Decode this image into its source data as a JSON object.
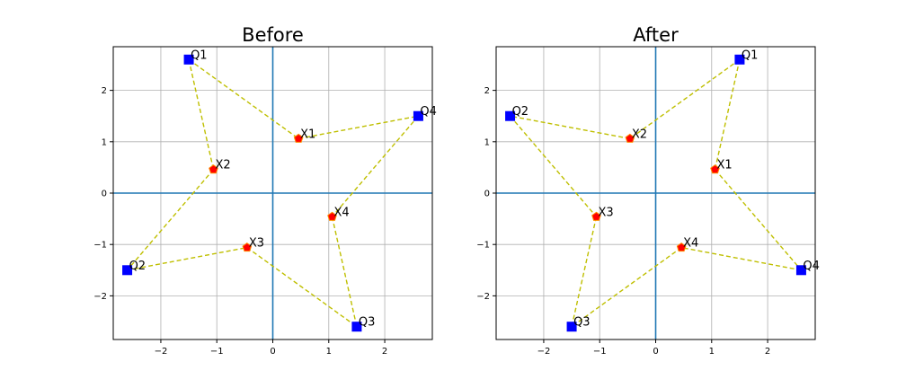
{
  "chart_data": [
    {
      "type": "scatter",
      "title": "Before",
      "xlim": [
        -2.85,
        2.85
      ],
      "ylim": [
        -2.85,
        2.85
      ],
      "xticks": [
        -2,
        -1,
        0,
        1,
        2
      ],
      "yticks": [
        -2,
        -1,
        0,
        1,
        2
      ],
      "xtick_labels": [
        "−2",
        "−1",
        "0",
        "1",
        "2"
      ],
      "ytick_labels": [
        "−2",
        "−1",
        "0",
        "1",
        "2"
      ],
      "grid": true,
      "reference_lines": {
        "x": 0,
        "y": 0,
        "color": "#1f77b4"
      },
      "points": [
        {
          "label": "Q1",
          "x": -1.5,
          "y": 2.6,
          "marker": "square",
          "color": "#0000ff"
        },
        {
          "label": "Q2",
          "x": -2.6,
          "y": -1.5,
          "marker": "square",
          "color": "#0000ff"
        },
        {
          "label": "Q3",
          "x": 1.5,
          "y": -2.6,
          "marker": "square",
          "color": "#0000ff"
        },
        {
          "label": "Q4",
          "x": 2.6,
          "y": 1.5,
          "marker": "square",
          "color": "#0000ff"
        },
        {
          "label": "X1",
          "x": 0.46,
          "y": 1.06,
          "marker": "pentagon",
          "color": "#ff0000"
        },
        {
          "label": "X2",
          "x": -1.06,
          "y": 0.46,
          "marker": "pentagon",
          "color": "#ff0000"
        },
        {
          "label": "X3",
          "x": -0.46,
          "y": -1.06,
          "marker": "pentagon",
          "color": "#ff0000"
        },
        {
          "label": "X4",
          "x": 1.06,
          "y": -0.46,
          "marker": "pentagon",
          "color": "#ff0000"
        }
      ],
      "edges": [
        [
          "Q1",
          "X1"
        ],
        [
          "X1",
          "Q4"
        ],
        [
          "Q4",
          "X4"
        ],
        [
          "X4",
          "Q3"
        ],
        [
          "Q1",
          "X2"
        ],
        [
          "X2",
          "Q2"
        ],
        [
          "Q2",
          "X3"
        ],
        [
          "X3",
          "Q3"
        ]
      ],
      "edge_color": "#bfbf00"
    },
    {
      "type": "scatter",
      "title": "After",
      "xlim": [
        -2.85,
        2.85
      ],
      "ylim": [
        -2.85,
        2.85
      ],
      "xticks": [
        -2,
        -1,
        0,
        1,
        2
      ],
      "yticks": [
        -2,
        -1,
        0,
        1,
        2
      ],
      "xtick_labels": [
        "−2",
        "−1",
        "0",
        "1",
        "2"
      ],
      "ytick_labels": [
        "−2",
        "−1",
        "0",
        "1",
        "2"
      ],
      "grid": true,
      "reference_lines": {
        "x": 0,
        "y": 0,
        "color": "#1f77b4"
      },
      "points": [
        {
          "label": "Q1",
          "x": 1.5,
          "y": 2.6,
          "marker": "square",
          "color": "#0000ff"
        },
        {
          "label": "Q2",
          "x": -2.6,
          "y": 1.5,
          "marker": "square",
          "color": "#0000ff"
        },
        {
          "label": "Q3",
          "x": -1.5,
          "y": -2.6,
          "marker": "square",
          "color": "#0000ff"
        },
        {
          "label": "Q4",
          "x": 2.6,
          "y": -1.5,
          "marker": "square",
          "color": "#0000ff"
        },
        {
          "label": "X1",
          "x": 1.06,
          "y": 0.46,
          "marker": "pentagon",
          "color": "#ff0000"
        },
        {
          "label": "X2",
          "x": -0.46,
          "y": 1.06,
          "marker": "pentagon",
          "color": "#ff0000"
        },
        {
          "label": "X3",
          "x": -1.06,
          "y": -0.46,
          "marker": "pentagon",
          "color": "#ff0000"
        },
        {
          "label": "X4",
          "x": 0.46,
          "y": -1.06,
          "marker": "pentagon",
          "color": "#ff0000"
        }
      ],
      "edges": [
        [
          "Q1",
          "X1"
        ],
        [
          "X1",
          "Q4"
        ],
        [
          "Q4",
          "X4"
        ],
        [
          "X4",
          "Q3"
        ],
        [
          "Q1",
          "X2"
        ],
        [
          "X2",
          "Q2"
        ],
        [
          "Q2",
          "X3"
        ],
        [
          "X3",
          "Q3"
        ]
      ],
      "edge_color": "#bfbf00"
    }
  ]
}
